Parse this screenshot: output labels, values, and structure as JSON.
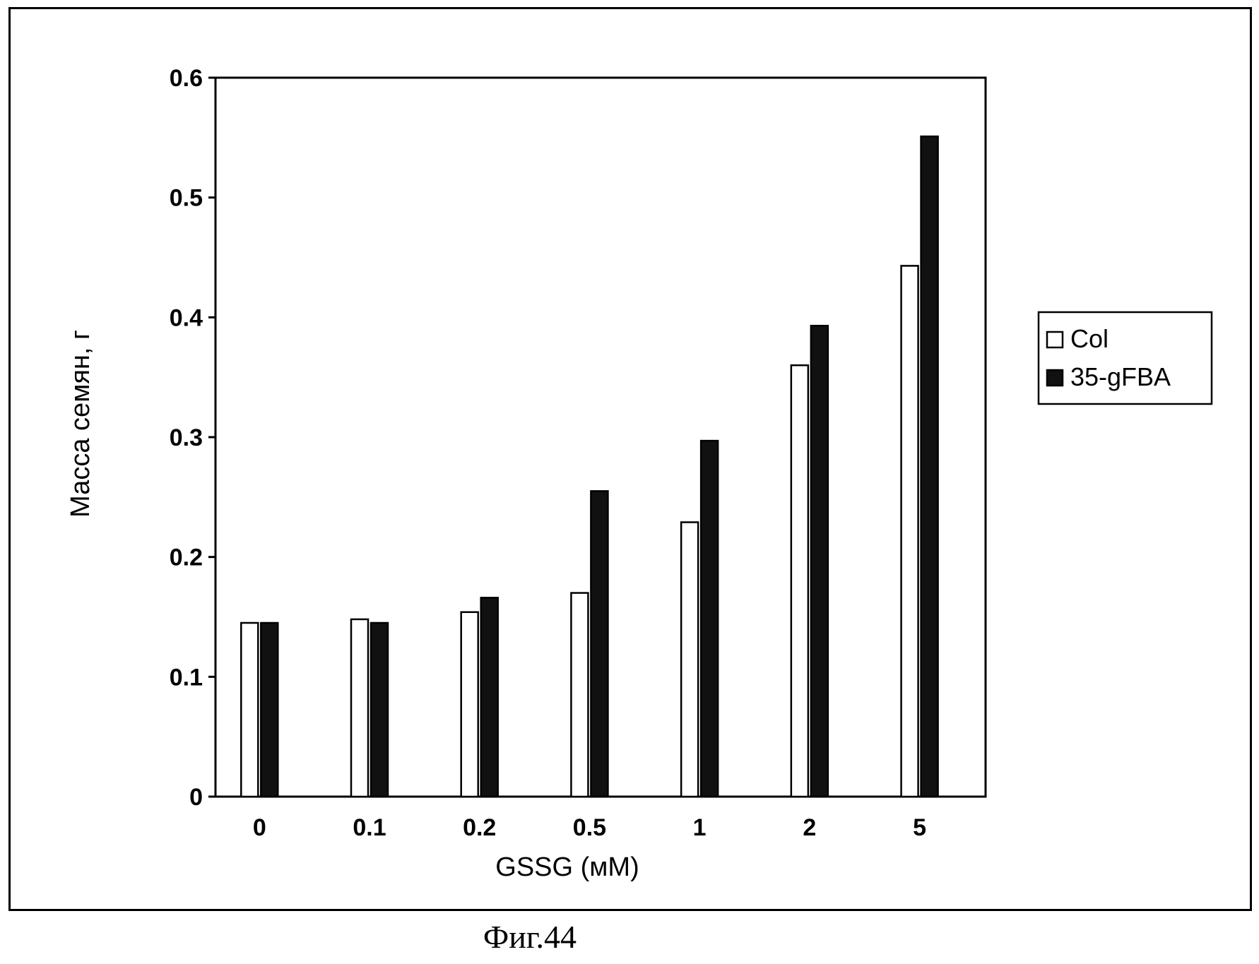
{
  "chart_data": {
    "type": "bar",
    "categories": [
      "0",
      "0.1",
      "0.2",
      "0.5",
      "1",
      "2",
      "5"
    ],
    "series": [
      {
        "name": "Col",
        "values": [
          0.145,
          0.148,
          0.154,
          0.17,
          0.229,
          0.36,
          0.443
        ]
      },
      {
        "name": "35-gFBA",
        "values": [
          0.145,
          0.145,
          0.166,
          0.255,
          0.297,
          0.393,
          0.551
        ]
      }
    ],
    "xlabel": "GSSG (мМ)",
    "ylabel": "Масса семян, г",
    "ylim": [
      0,
      0.6
    ],
    "yticks": [
      "0",
      "0.1",
      "0.2",
      "0.3",
      "0.4",
      "0.5",
      "0.6"
    ],
    "grid": false,
    "legend": "right",
    "colors": {
      "Col": "#ffffff",
      "35-gFBA": "#111111"
    }
  },
  "caption": "Фиг.44"
}
